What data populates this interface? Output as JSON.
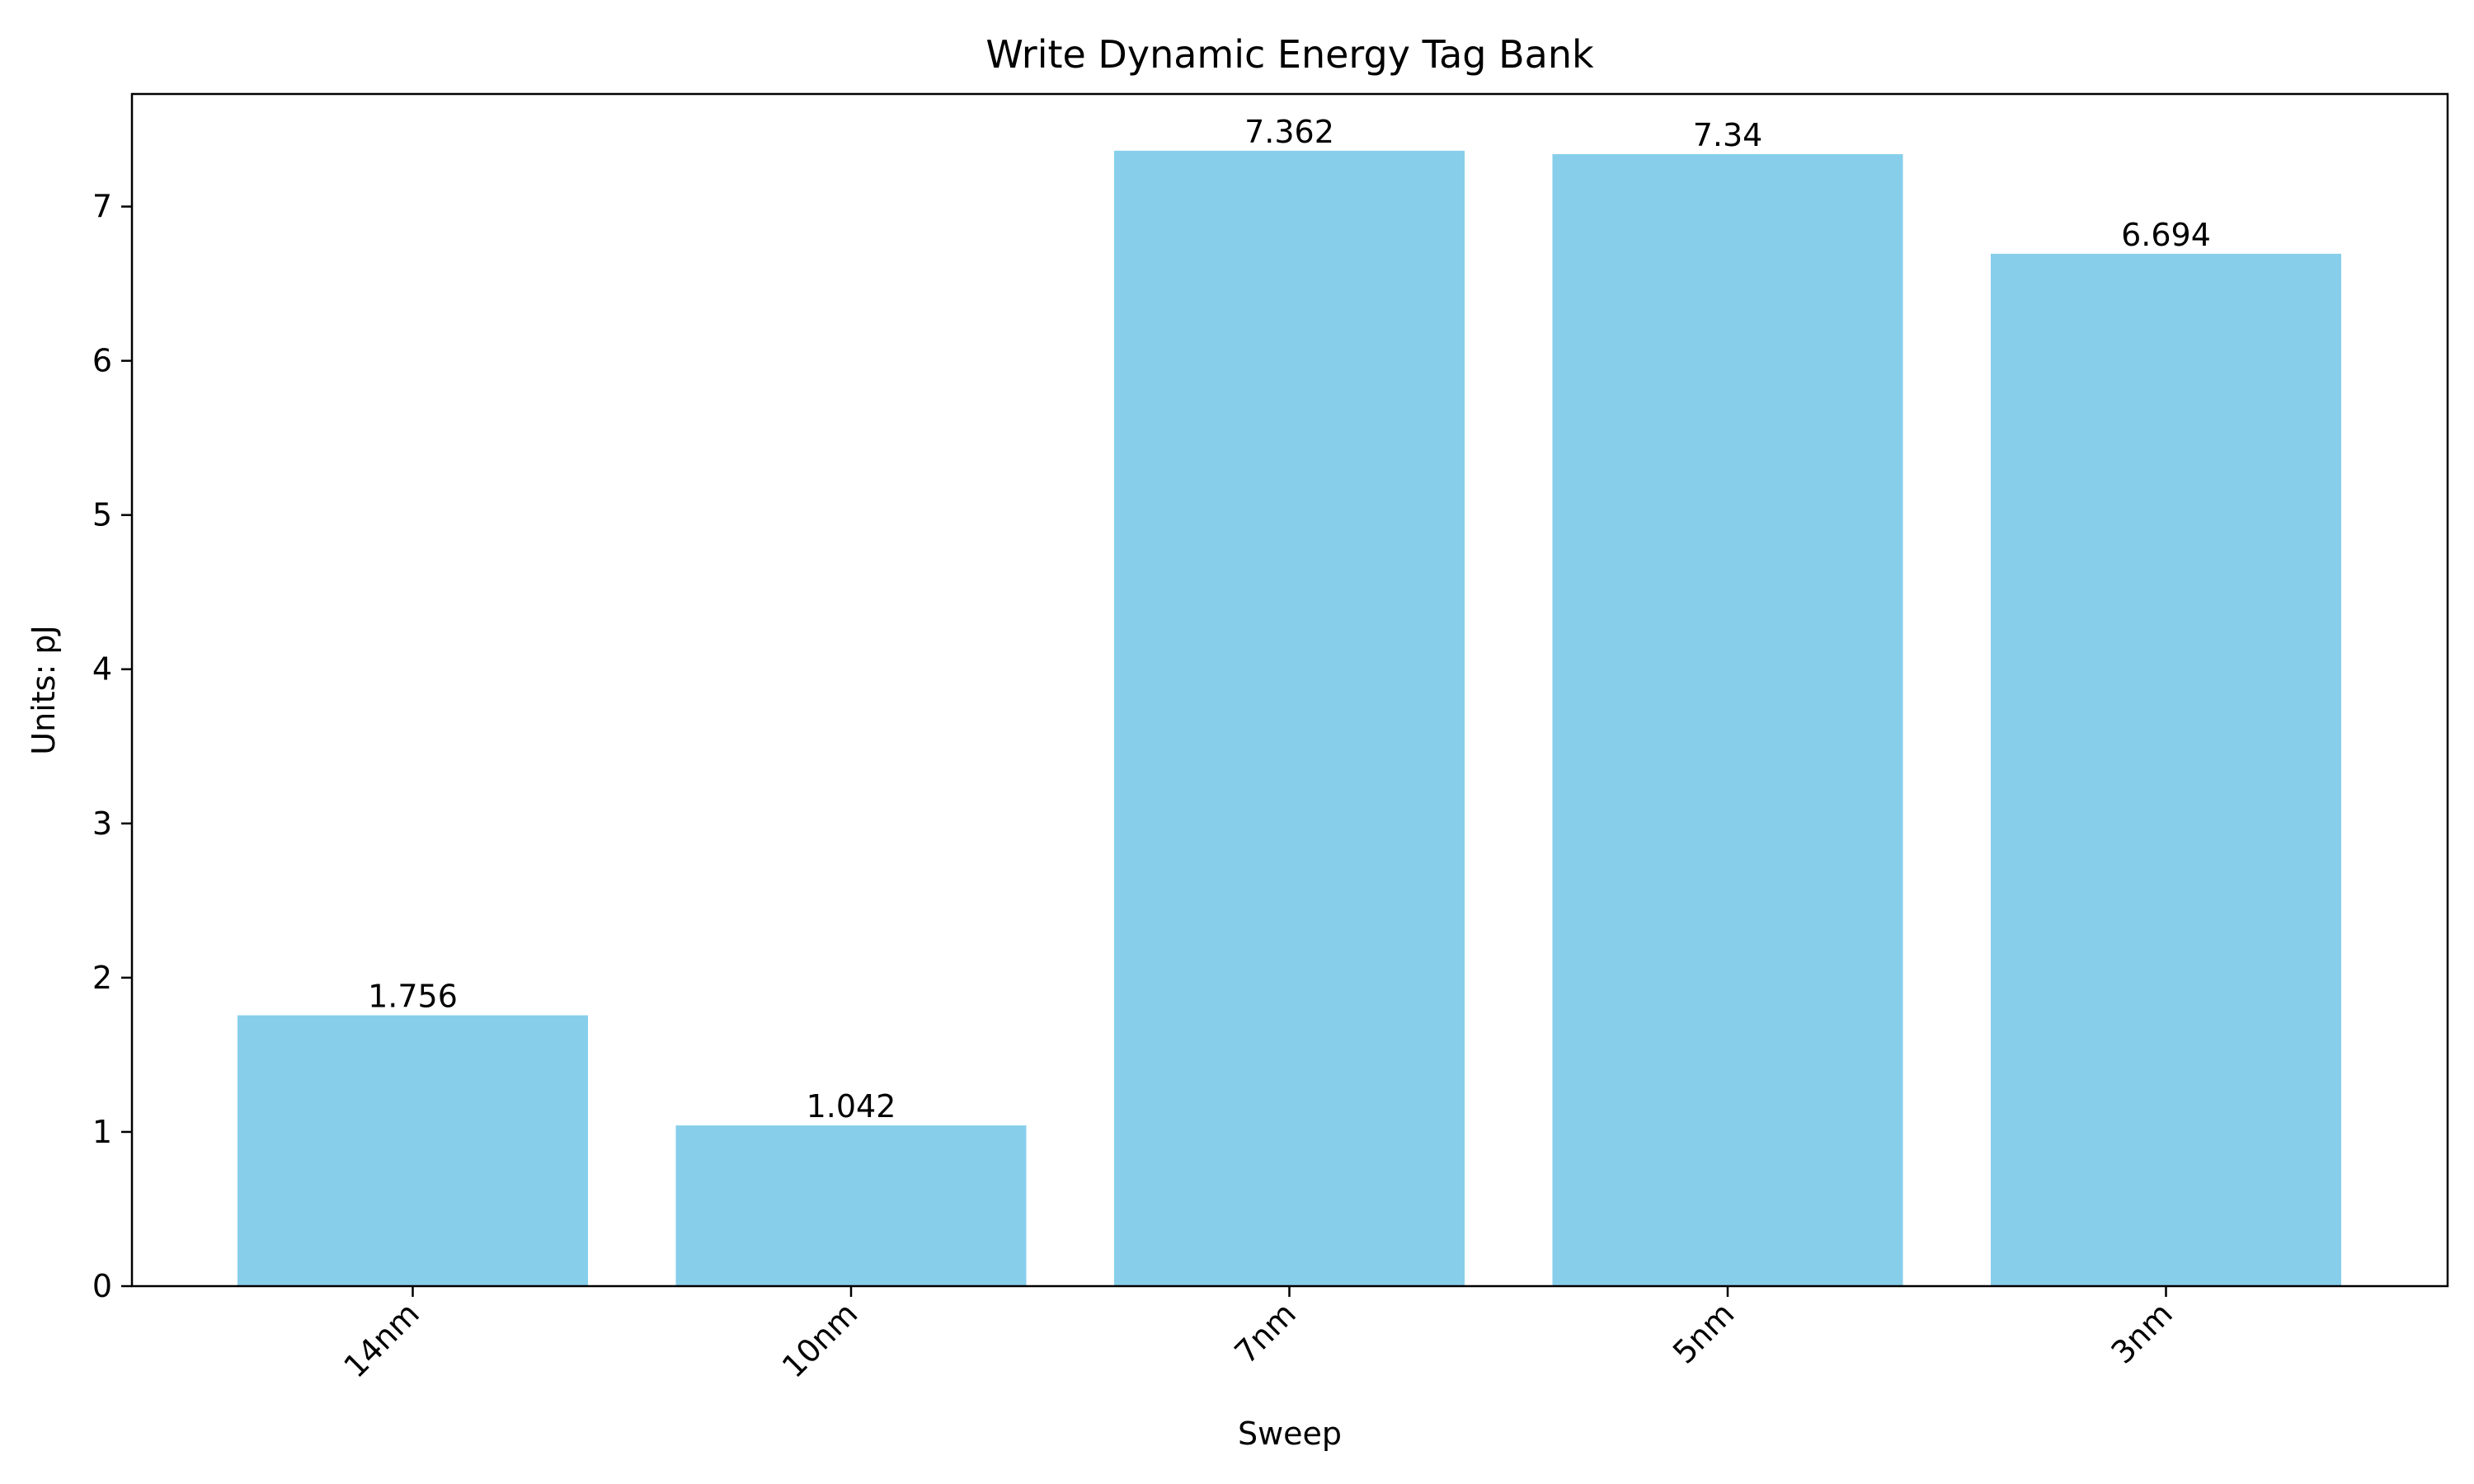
{
  "chart_data": {
    "type": "bar",
    "title": "Write Dynamic Energy Tag Bank",
    "xlabel": "Sweep",
    "ylabel": "Units: pJ",
    "categories": [
      "14nm",
      "10nm",
      "7nm",
      "5nm",
      "3nm"
    ],
    "values": [
      1.756,
      1.042,
      7.362,
      7.34,
      6.694
    ],
    "value_labels": [
      "1.756",
      "1.042",
      "7.362",
      "7.34",
      "6.694"
    ],
    "yticks": [
      0,
      1,
      2,
      3,
      4,
      5,
      6,
      7
    ],
    "ylim": [
      0,
      7.73
    ],
    "grid": false,
    "bar_color": "#87ceeb"
  }
}
